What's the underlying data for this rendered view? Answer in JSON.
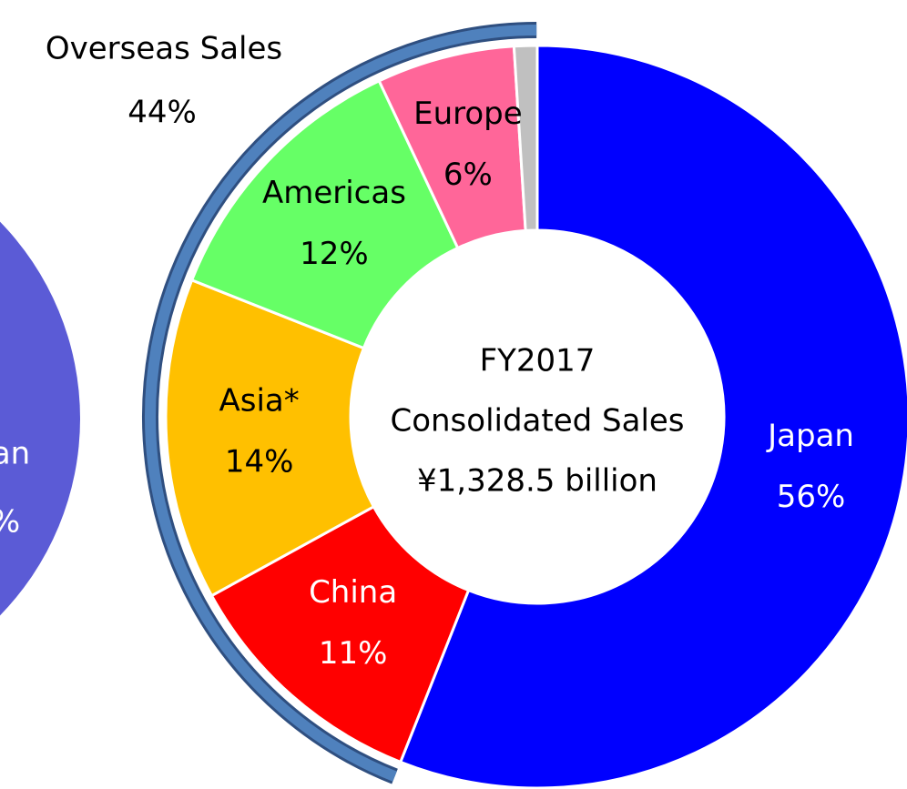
{
  "chart_data": {
    "type": "donut",
    "categories": [
      "Japan",
      "China",
      "Asia*",
      "Americas",
      "Europe",
      null
    ],
    "values": [
      56,
      11,
      14,
      12,
      6,
      1
    ],
    "value_labels": [
      "56%",
      "11%",
      "14%",
      "12%",
      "6%",
      null
    ],
    "colors": [
      "#0000ff",
      "#ff0000",
      "#ffc000",
      "#66ff66",
      "#ff6699",
      "#c0c0c0"
    ],
    "label_colors": [
      "#ffffff",
      "#ffffff",
      "#000000",
      "#000000",
      "#000000",
      "#000000"
    ],
    "center_text": [
      "FY2017",
      "Consolidated Sales",
      "¥1,328.5 billion"
    ],
    "annotation": {
      "text": "Overseas Sales",
      "value": 44,
      "value_label": "44%"
    }
  },
  "background_fragment": {
    "label_lines": [
      "an",
      "%"
    ]
  }
}
